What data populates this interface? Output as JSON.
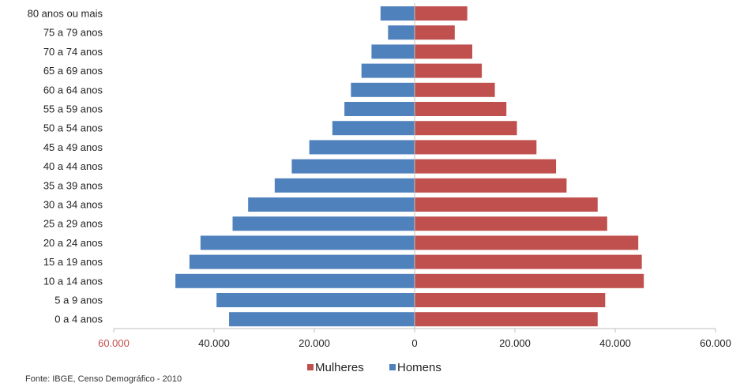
{
  "chart_data": {
    "type": "bar",
    "orientation": "horizontal",
    "categories": [
      "0 a 4 anos",
      "5 a 9 anos",
      "10 a 14 anos",
      "15 a 19 anos",
      "20 a 24 anos",
      "25 a 29 anos",
      "30 a 34 anos",
      "35 a 39 anos",
      "40 a 44 anos",
      "45 a 49 anos",
      "50 a 54 anos",
      "55 a 59 anos",
      "60 a 64 anos",
      "65 a 69 anos",
      "70 a 74 anos",
      "75 a 79 anos",
      "80 anos ou mais"
    ],
    "series": [
      {
        "name": "Mulheres",
        "color": "#c0504d",
        "values": [
          36500,
          38000,
          45700,
          45300,
          44600,
          38400,
          36500,
          30300,
          28200,
          24300,
          20400,
          18300,
          16000,
          13400,
          11500,
          8000,
          10500
        ]
      },
      {
        "name": "Homens",
        "color": "#4f81bd",
        "values": [
          37000,
          39500,
          47700,
          44900,
          42700,
          36300,
          33200,
          27900,
          24500,
          21000,
          16400,
          14000,
          12700,
          10600,
          8600,
          5300,
          6800
        ]
      }
    ],
    "xlim": [
      -60000,
      60000
    ],
    "xticks": [
      {
        "value": -60000,
        "label": "60.000",
        "color": "#c0504d"
      },
      {
        "value": -40000,
        "label": "40.000",
        "color": "#222222"
      },
      {
        "value": -20000,
        "label": "20.000",
        "color": "#222222"
      },
      {
        "value": 0,
        "label": "0",
        "color": "#222222"
      },
      {
        "value": 20000,
        "label": "20.000",
        "color": "#222222"
      },
      {
        "value": 40000,
        "label": "40.000",
        "color": "#222222"
      },
      {
        "value": 60000,
        "label": "60.000",
        "color": "#222222"
      }
    ],
    "legend": {
      "position": "bottom"
    },
    "grid": false
  },
  "source": "Fonte: IBGE, Censo Demográfico - 2010"
}
